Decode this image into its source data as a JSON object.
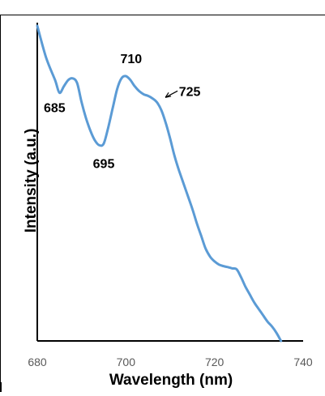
{
  "chart_data": {
    "type": "line",
    "xlabel": "Wavelength (nm)",
    "ylabel": "Intensity (a.u.)",
    "xlim": [
      680,
      740
    ],
    "ylim": [
      0,
      1
    ],
    "x_ticks": [
      680,
      700,
      720,
      740
    ],
    "y_ticks_shown": false,
    "grid": false,
    "legend": "none",
    "colors": {
      "line": "#5b9bd5",
      "axis": "#000000",
      "tick_label": "#595959",
      "annotation": "#000000"
    },
    "series": [
      {
        "x": [
          680,
          682,
          684,
          685,
          686,
          687,
          688,
          689,
          690,
          691,
          692,
          693,
          694,
          695,
          696,
          697,
          698,
          699,
          700,
          701,
          702,
          703,
          704,
          705,
          706,
          707,
          708,
          709,
          710,
          711,
          712,
          713,
          714,
          715,
          716,
          717,
          718,
          719,
          720,
          721,
          722,
          723,
          724,
          725,
          726,
          727,
          728,
          729,
          730,
          731,
          732,
          733,
          734,
          735
        ],
        "y": [
          0.99,
          0.89,
          0.82,
          0.78,
          0.8,
          0.82,
          0.825,
          0.81,
          0.75,
          0.7,
          0.66,
          0.63,
          0.615,
          0.62,
          0.67,
          0.73,
          0.79,
          0.825,
          0.832,
          0.82,
          0.8,
          0.785,
          0.775,
          0.77,
          0.762,
          0.75,
          0.725,
          0.685,
          0.635,
          0.58,
          0.535,
          0.495,
          0.455,
          0.415,
          0.37,
          0.33,
          0.29,
          0.265,
          0.25,
          0.24,
          0.235,
          0.232,
          0.228,
          0.225,
          0.2,
          0.17,
          0.145,
          0.12,
          0.1,
          0.08,
          0.06,
          0.045,
          0.025,
          0.0
        ]
      }
    ],
    "annotations": [
      {
        "text": "685",
        "x": 685,
        "y": 0.78
      },
      {
        "text": "695",
        "x": 695,
        "y": 0.615
      },
      {
        "text": "710",
        "x": 701,
        "y": 0.832
      },
      {
        "text": "725",
        "x": 708,
        "y": 0.76,
        "arrow": true
      }
    ]
  }
}
